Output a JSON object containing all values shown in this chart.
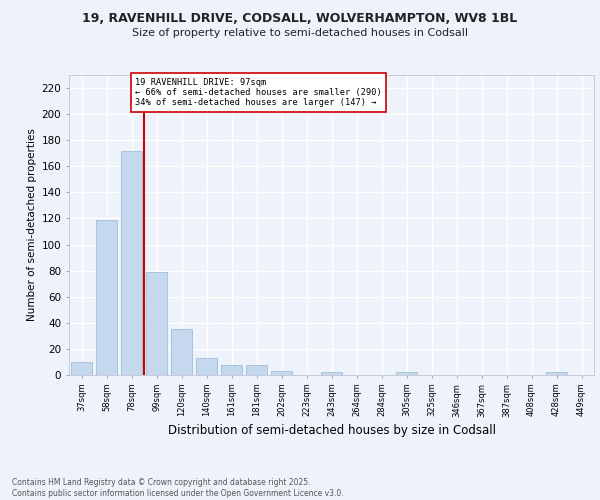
{
  "title_line1": "19, RAVENHILL DRIVE, CODSALL, WOLVERHAMPTON, WV8 1BL",
  "title_line2": "Size of property relative to semi-detached houses in Codsall",
  "xlabel": "Distribution of semi-detached houses by size in Codsall",
  "ylabel": "Number of semi-detached properties",
  "categories": [
    "37sqm",
    "58sqm",
    "78sqm",
    "99sqm",
    "120sqm",
    "140sqm",
    "161sqm",
    "181sqm",
    "202sqm",
    "223sqm",
    "243sqm",
    "264sqm",
    "284sqm",
    "305sqm",
    "325sqm",
    "346sqm",
    "367sqm",
    "387sqm",
    "408sqm",
    "428sqm",
    "449sqm"
  ],
  "values": [
    10,
    119,
    172,
    79,
    35,
    13,
    8,
    8,
    3,
    0,
    2,
    0,
    0,
    2,
    0,
    0,
    0,
    0,
    0,
    2,
    0
  ],
  "bar_color": "#c5d8ed",
  "bar_edge_color": "#a0bed8",
  "vline_color": "#cc0000",
  "vline_x_index": 2.5,
  "ylim": [
    0,
    230
  ],
  "yticks": [
    0,
    20,
    40,
    60,
    80,
    100,
    120,
    140,
    160,
    180,
    200,
    220
  ],
  "background_color": "#eef2fa",
  "grid_color": "#ffffff",
  "property_label": "19 RAVENHILL DRIVE: 97sqm",
  "smaller_pct": 66,
  "smaller_count": 290,
  "larger_pct": 34,
  "larger_count": 147,
  "footer": "Contains HM Land Registry data © Crown copyright and database right 2025.\nContains public sector information licensed under the Open Government Licence v3.0."
}
